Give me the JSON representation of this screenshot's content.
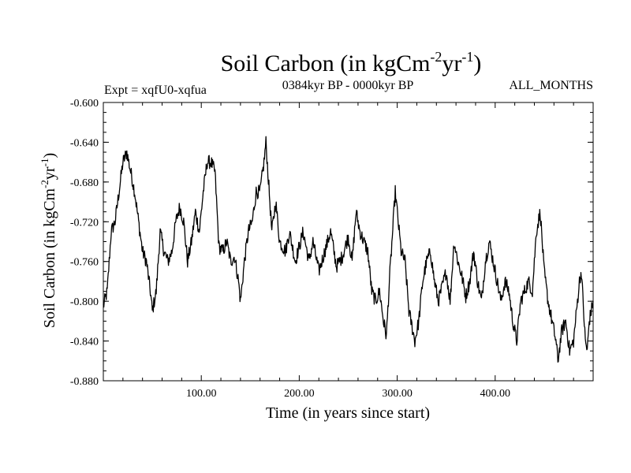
{
  "chart_data": {
    "type": "line",
    "title_main": "Soil Carbon (in kgCm",
    "title_sup1": "-2",
    "title_mid": "yr",
    "title_sup2": "-1",
    "title_end": ")",
    "subtitle_left": "Expt = xqfU0-xqfua",
    "subtitle_center": "0384kyr BP - 0000kyr BP",
    "subtitle_right": "ALL_MONTHS",
    "xlabel": "Time (in years since start)",
    "ylabel_main": "Soil Carbon (in kgCm",
    "ylabel_sup1": "-2",
    "ylabel_mid": "yr",
    "ylabel_sup2": "-1",
    "ylabel_end": ")",
    "xlim": [
      0,
      500
    ],
    "ylim": [
      -0.88,
      -0.6
    ],
    "x_ticks": [
      {
        "value": 100,
        "label": "100.00"
      },
      {
        "value": 200,
        "label": "200.00"
      },
      {
        "value": 300,
        "label": "300.00"
      },
      {
        "value": 400,
        "label": "400.00"
      }
    ],
    "y_ticks": [
      {
        "value": -0.6,
        "label": "-0.600"
      },
      {
        "value": -0.64,
        "label": "-0.640"
      },
      {
        "value": -0.68,
        "label": "-0.680"
      },
      {
        "value": -0.72,
        "label": "-0.720"
      },
      {
        "value": -0.76,
        "label": "-0.760"
      },
      {
        "value": -0.8,
        "label": "-0.800"
      },
      {
        "value": -0.84,
        "label": "-0.840"
      },
      {
        "value": -0.88,
        "label": "-0.880"
      }
    ],
    "series": [
      {
        "name": "Soil Carbon",
        "anchors": [
          [
            0,
            -0.805
          ],
          [
            4,
            -0.79
          ],
          [
            8,
            -0.73
          ],
          [
            12,
            -0.72
          ],
          [
            16,
            -0.69
          ],
          [
            20,
            -0.66
          ],
          [
            24,
            -0.65
          ],
          [
            28,
            -0.67
          ],
          [
            32,
            -0.69
          ],
          [
            36,
            -0.72
          ],
          [
            40,
            -0.75
          ],
          [
            44,
            -0.76
          ],
          [
            48,
            -0.79
          ],
          [
            50,
            -0.81
          ],
          [
            54,
            -0.79
          ],
          [
            58,
            -0.73
          ],
          [
            62,
            -0.75
          ],
          [
            66,
            -0.76
          ],
          [
            70,
            -0.75
          ],
          [
            74,
            -0.72
          ],
          [
            78,
            -0.705
          ],
          [
            82,
            -0.72
          ],
          [
            86,
            -0.76
          ],
          [
            90,
            -0.74
          ],
          [
            94,
            -0.71
          ],
          [
            98,
            -0.73
          ],
          [
            102,
            -0.69
          ],
          [
            106,
            -0.66
          ],
          [
            110,
            -0.66
          ],
          [
            114,
            -0.67
          ],
          [
            118,
            -0.745
          ],
          [
            122,
            -0.75
          ],
          [
            126,
            -0.74
          ],
          [
            130,
            -0.76
          ],
          [
            134,
            -0.755
          ],
          [
            138,
            -0.78
          ],
          [
            140,
            -0.8
          ],
          [
            144,
            -0.76
          ],
          [
            148,
            -0.73
          ],
          [
            152,
            -0.72
          ],
          [
            156,
            -0.69
          ],
          [
            160,
            -0.69
          ],
          [
            164,
            -0.66
          ],
          [
            166,
            -0.64
          ],
          [
            168,
            -0.67
          ],
          [
            172,
            -0.73
          ],
          [
            176,
            -0.7
          ],
          [
            180,
            -0.74
          ],
          [
            186,
            -0.75
          ],
          [
            190,
            -0.73
          ],
          [
            196,
            -0.76
          ],
          [
            200,
            -0.745
          ],
          [
            204,
            -0.73
          ],
          [
            210,
            -0.76
          ],
          [
            214,
            -0.74
          ],
          [
            220,
            -0.77
          ],
          [
            226,
            -0.75
          ],
          [
            232,
            -0.73
          ],
          [
            238,
            -0.765
          ],
          [
            244,
            -0.755
          ],
          [
            250,
            -0.735
          ],
          [
            254,
            -0.76
          ],
          [
            258,
            -0.71
          ],
          [
            262,
            -0.73
          ],
          [
            266,
            -0.74
          ],
          [
            270,
            -0.75
          ],
          [
            274,
            -0.79
          ],
          [
            278,
            -0.8
          ],
          [
            282,
            -0.79
          ],
          [
            286,
            -0.82
          ],
          [
            289,
            -0.835
          ],
          [
            292,
            -0.78
          ],
          [
            296,
            -0.72
          ],
          [
            298,
            -0.69
          ],
          [
            300,
            -0.71
          ],
          [
            304,
            -0.75
          ],
          [
            308,
            -0.76
          ],
          [
            312,
            -0.81
          ],
          [
            316,
            -0.83
          ],
          [
            318,
            -0.84
          ],
          [
            322,
            -0.82
          ],
          [
            326,
            -0.78
          ],
          [
            330,
            -0.76
          ],
          [
            334,
            -0.75
          ],
          [
            338,
            -0.78
          ],
          [
            342,
            -0.8
          ],
          [
            346,
            -0.785
          ],
          [
            350,
            -0.77
          ],
          [
            354,
            -0.8
          ],
          [
            358,
            -0.74
          ],
          [
            362,
            -0.76
          ],
          [
            366,
            -0.775
          ],
          [
            370,
            -0.795
          ],
          [
            374,
            -0.78
          ],
          [
            378,
            -0.75
          ],
          [
            382,
            -0.78
          ],
          [
            386,
            -0.8
          ],
          [
            390,
            -0.76
          ],
          [
            394,
            -0.74
          ],
          [
            398,
            -0.76
          ],
          [
            402,
            -0.78
          ],
          [
            406,
            -0.8
          ],
          [
            410,
            -0.78
          ],
          [
            414,
            -0.79
          ],
          [
            418,
            -0.82
          ],
          [
            422,
            -0.84
          ],
          [
            426,
            -0.8
          ],
          [
            430,
            -0.79
          ],
          [
            434,
            -0.78
          ],
          [
            438,
            -0.79
          ],
          [
            442,
            -0.73
          ],
          [
            446,
            -0.71
          ],
          [
            450,
            -0.77
          ],
          [
            454,
            -0.8
          ],
          [
            458,
            -0.82
          ],
          [
            462,
            -0.84
          ],
          [
            464,
            -0.86
          ],
          [
            468,
            -0.83
          ],
          [
            472,
            -0.82
          ],
          [
            476,
            -0.85
          ],
          [
            480,
            -0.84
          ],
          [
            484,
            -0.8
          ],
          [
            486,
            -0.78
          ],
          [
            488,
            -0.77
          ],
          [
            492,
            -0.84
          ],
          [
            494,
            -0.85
          ],
          [
            496,
            -0.82
          ],
          [
            500,
            -0.8
          ]
        ]
      }
    ]
  }
}
